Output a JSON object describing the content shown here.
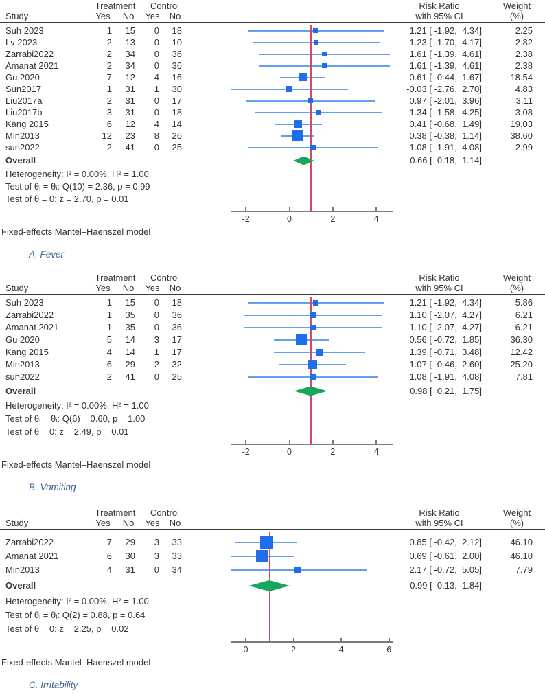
{
  "colors": {
    "box": "#1d6ee8",
    "ci_line": "#64a0f0",
    "ref_line": "#d04a6b",
    "diamond": "#17a65b",
    "caption": "#41639c",
    "text": "#333333"
  },
  "chart_data": [
    {
      "type": "forest",
      "caption": "A. Fever",
      "study_header": "Study",
      "group_headers": [
        "Treatment",
        "Control"
      ],
      "subcol_headers": [
        "Yes",
        "No",
        "Yes",
        "No"
      ],
      "effect_header": [
        "Risk Ratio",
        "with 95% CI"
      ],
      "weight_header": [
        "Weight",
        "(%)"
      ],
      "studies": [
        {
          "name": "Suh 2023",
          "counts": [
            1,
            15,
            0,
            18
          ],
          "est": 1.21,
          "lo": -1.92,
          "hi": 4.34,
          "ci_text": "1.21 [ -1.92,  4.34]",
          "weight": "2.25"
        },
        {
          "name": "Lv 2023",
          "counts": [
            2,
            13,
            0,
            10
          ],
          "est": 1.23,
          "lo": -1.7,
          "hi": 4.17,
          "ci_text": "1.23 [ -1.70,  4.17]",
          "weight": "2.82"
        },
        {
          "name": "Zarrabi2022",
          "counts": [
            2,
            34,
            0,
            36
          ],
          "est": 1.61,
          "lo": -1.39,
          "hi": 4.61,
          "ci_text": "1.61 [ -1.39,  4.61]",
          "weight": "2.38"
        },
        {
          "name": "Amanat 2021",
          "counts": [
            2,
            34,
            0,
            36
          ],
          "est": 1.61,
          "lo": -1.39,
          "hi": 4.61,
          "ci_text": "1.61 [ -1.39,  4.61]",
          "weight": "2.38"
        },
        {
          "name": "Gu 2020",
          "counts": [
            7,
            12,
            4,
            16
          ],
          "est": 0.61,
          "lo": -0.44,
          "hi": 1.67,
          "ci_text": "0.61 [ -0.44,  1.67]",
          "weight": "18.54"
        },
        {
          "name": "Sun2017",
          "counts": [
            1,
            31,
            1,
            30
          ],
          "est": -0.03,
          "lo": -2.76,
          "hi": 2.7,
          "ci_text": "-0.03 [ -2.76,  2.70]",
          "weight": "4.83"
        },
        {
          "name": "Liu2017a",
          "counts": [
            2,
            31,
            0,
            17
          ],
          "est": 0.97,
          "lo": -2.01,
          "hi": 3.96,
          "ci_text": "0.97 [ -2.01,  3.96]",
          "weight": "3.11"
        },
        {
          "name": "Liu2017b",
          "counts": [
            3,
            31,
            0,
            18
          ],
          "est": 1.34,
          "lo": -1.58,
          "hi": 4.25,
          "ci_text": "1.34 [ -1.58,  4.25]",
          "weight": "3.08"
        },
        {
          "name": "Kang 2015",
          "counts": [
            6,
            12,
            4,
            14
          ],
          "est": 0.41,
          "lo": -0.68,
          "hi": 1.49,
          "ci_text": "0.41 [ -0.68,  1.49]",
          "weight": "19.03"
        },
        {
          "name": "Min2013",
          "counts": [
            12,
            23,
            8,
            26
          ],
          "est": 0.38,
          "lo": -0.38,
          "hi": 1.14,
          "ci_text": "0.38 [ -0.38,  1.14]",
          "weight": "38.60"
        },
        {
          "name": "sun2022",
          "counts": [
            2,
            41,
            0,
            25
          ],
          "est": 1.08,
          "lo": -1.91,
          "hi": 4.08,
          "ci_text": "1.08 [ -1.91,  4.08]",
          "weight": "2.99"
        }
      ],
      "overall_label": "Overall",
      "overall": {
        "est": 0.66,
        "lo": 0.18,
        "hi": 1.14,
        "ci_text": "0.66 [  0.18,  1.14]"
      },
      "stats": [
        "Heterogeneity: I² = 0.00%, H² = 1.00",
        "Test of θᵢ = θⱼ: Q(10) = 2.36, p = 0.99",
        "Test of θ = 0: z = 2.70, p = 0.01"
      ],
      "x_axis": {
        "ticks": [
          -2,
          0,
          2,
          4
        ],
        "range": [
          -2.7,
          4.75
        ],
        "ref_line": 1
      },
      "model_note": "Fixed-effects Mantel–Haenszel model"
    },
    {
      "type": "forest",
      "caption": "B. Vomiting",
      "study_header": "Study",
      "group_headers": [
        "Treatment",
        "Control"
      ],
      "subcol_headers": [
        "Yes",
        "No",
        "Yes",
        "No"
      ],
      "effect_header": [
        "Risk Ratio",
        "with 95% CI"
      ],
      "weight_header": [
        "Weight",
        "(%)"
      ],
      "studies": [
        {
          "name": "Suh 2023",
          "counts": [
            1,
            15,
            0,
            18
          ],
          "est": 1.21,
          "lo": -1.92,
          "hi": 4.34,
          "ci_text": "1.21 [ -1.92,  4.34]",
          "weight": "5.86"
        },
        {
          "name": "Zarrabi2022",
          "counts": [
            1,
            35,
            0,
            36
          ],
          "est": 1.1,
          "lo": -2.07,
          "hi": 4.27,
          "ci_text": "1.10 [ -2.07,  4.27]",
          "weight": "6.21"
        },
        {
          "name": "Amanat 2021",
          "counts": [
            1,
            35,
            0,
            36
          ],
          "est": 1.1,
          "lo": -2.07,
          "hi": 4.27,
          "ci_text": "1.10 [ -2.07,  4.27]",
          "weight": "6.21"
        },
        {
          "name": "Gu 2020",
          "counts": [
            5,
            14,
            3,
            17
          ],
          "est": 0.56,
          "lo": -0.72,
          "hi": 1.85,
          "ci_text": "0.56 [ -0.72,  1.85]",
          "weight": "36.30"
        },
        {
          "name": "Kang 2015",
          "counts": [
            4,
            14,
            1,
            17
          ],
          "est": 1.39,
          "lo": -0.71,
          "hi": 3.48,
          "ci_text": "1.39 [ -0.71,  3.48]",
          "weight": "12.42"
        },
        {
          "name": "Min2013",
          "counts": [
            6,
            29,
            2,
            32
          ],
          "est": 1.07,
          "lo": -0.46,
          "hi": 2.6,
          "ci_text": "1.07 [ -0.46,  2.60]",
          "weight": "25.20"
        },
        {
          "name": "sun2022",
          "counts": [
            2,
            41,
            0,
            25
          ],
          "est": 1.08,
          "lo": -1.91,
          "hi": 4.08,
          "ci_text": "1.08 [ -1.91,  4.08]",
          "weight": "7.81"
        }
      ],
      "overall_label": "Overall",
      "overall": {
        "est": 0.98,
        "lo": 0.21,
        "hi": 1.75,
        "ci_text": "0.98 [  0.21,  1.75]"
      },
      "stats": [
        "Heterogeneity: I² = 0.00%, H² = 1.00",
        "Test of θᵢ = θⱼ: Q(6) = 0.60, p = 1.00",
        "Test of θ = 0: z = 2.49, p = 0.01"
      ],
      "x_axis": {
        "ticks": [
          -2,
          0,
          2,
          4
        ],
        "range": [
          -2.7,
          4.75
        ],
        "ref_line": 1
      },
      "model_note": "Fixed-effects Mantel–Haenszel model"
    },
    {
      "type": "forest",
      "caption": "C. Irritability",
      "study_header": "Study",
      "group_headers": [
        "Treatment",
        "Control"
      ],
      "subcol_headers": [
        "Yes",
        "No",
        "Yes",
        "No"
      ],
      "effect_header": [
        "Risk Ratio",
        "with 95% CI"
      ],
      "weight_header": [
        "Weight",
        "(%)"
      ],
      "studies": [
        {
          "name": "Zarrabi2022",
          "counts": [
            7,
            29,
            3,
            33
          ],
          "est": 0.85,
          "lo": -0.42,
          "hi": 2.12,
          "ci_text": "0.85 [ -0.42,  2.12]",
          "weight": "46.10"
        },
        {
          "name": "Amanat 2021",
          "counts": [
            6,
            30,
            3,
            33
          ],
          "est": 0.69,
          "lo": -0.61,
          "hi": 2.0,
          "ci_text": "0.69 [ -0.61,  2.00]",
          "weight": "46.10"
        },
        {
          "name": "Min2013",
          "counts": [
            4,
            31,
            0,
            34
          ],
          "est": 2.17,
          "lo": -0.72,
          "hi": 5.05,
          "ci_text": "2.17 [ -0.72,  5.05]",
          "weight": "7.79"
        }
      ],
      "overall_label": "Overall",
      "overall": {
        "est": 0.99,
        "lo": 0.13,
        "hi": 1.84,
        "ci_text": "0.99 [  0.13,  1.84]"
      },
      "stats": [
        "Heterogeneity: I² = 0.00%, H² = 1.00",
        "Test of θᵢ = θⱼ: Q(2) = 0.88, p = 0.64",
        "Test of θ = 0: z = 2.25, p = 0.02"
      ],
      "x_axis": {
        "ticks": [
          0,
          2,
          4,
          6
        ],
        "range": [
          -0.63,
          6.15
        ],
        "ref_line": 1
      },
      "model_note": "Fixed-effects Mantel–Haenszel model"
    }
  ]
}
